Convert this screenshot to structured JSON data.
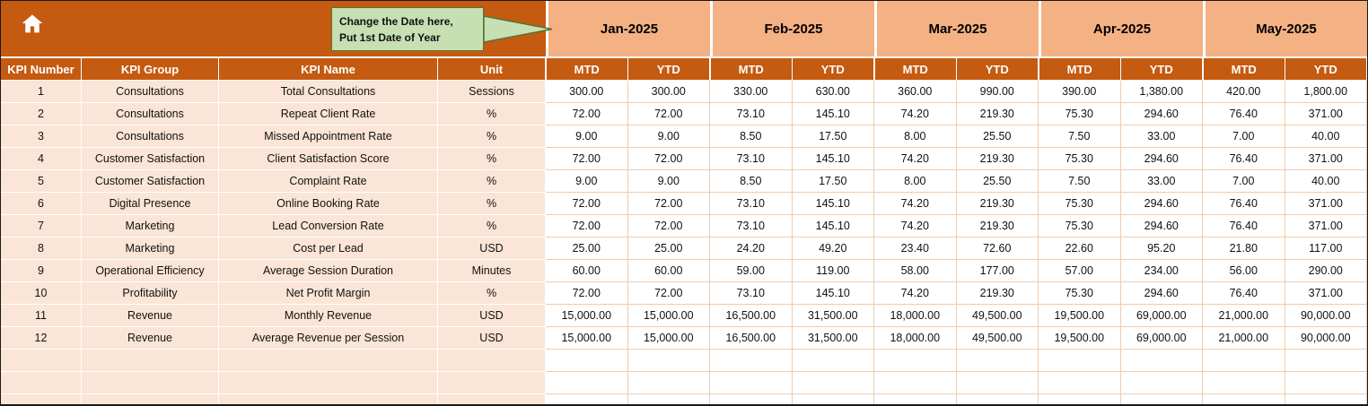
{
  "callout": {
    "line1": "Change the Date here,",
    "line2": "Put 1st Date of Year"
  },
  "months": [
    "Jan-2025",
    "Feb-2025",
    "Mar-2025",
    "Apr-2025",
    "May-2025"
  ],
  "subheaders": {
    "mtd": "MTD",
    "ytd": "YTD"
  },
  "columns": [
    "KPI Number",
    "KPI Group",
    "KPI Name",
    "Unit"
  ],
  "rows": [
    {
      "num": "1",
      "group": "Consultations",
      "name": "Total Consultations",
      "unit": "Sessions",
      "values": [
        "300.00",
        "300.00",
        "330.00",
        "630.00",
        "360.00",
        "990.00",
        "390.00",
        "1,380.00",
        "420.00",
        "1,800.00"
      ]
    },
    {
      "num": "2",
      "group": "Consultations",
      "name": "Repeat Client Rate",
      "unit": "%",
      "values": [
        "72.00",
        "72.00",
        "73.10",
        "145.10",
        "74.20",
        "219.30",
        "75.30",
        "294.60",
        "76.40",
        "371.00"
      ]
    },
    {
      "num": "3",
      "group": "Consultations",
      "name": "Missed Appointment Rate",
      "unit": "%",
      "values": [
        "9.00",
        "9.00",
        "8.50",
        "17.50",
        "8.00",
        "25.50",
        "7.50",
        "33.00",
        "7.00",
        "40.00"
      ]
    },
    {
      "num": "4",
      "group": "Customer Satisfaction",
      "name": "Client Satisfaction Score",
      "unit": "%",
      "values": [
        "72.00",
        "72.00",
        "73.10",
        "145.10",
        "74.20",
        "219.30",
        "75.30",
        "294.60",
        "76.40",
        "371.00"
      ]
    },
    {
      "num": "5",
      "group": "Customer Satisfaction",
      "name": "Complaint Rate",
      "unit": "%",
      "values": [
        "9.00",
        "9.00",
        "8.50",
        "17.50",
        "8.00",
        "25.50",
        "7.50",
        "33.00",
        "7.00",
        "40.00"
      ]
    },
    {
      "num": "6",
      "group": "Digital Presence",
      "name": "Online Booking Rate",
      "unit": "%",
      "values": [
        "72.00",
        "72.00",
        "73.10",
        "145.10",
        "74.20",
        "219.30",
        "75.30",
        "294.60",
        "76.40",
        "371.00"
      ]
    },
    {
      "num": "7",
      "group": "Marketing",
      "name": "Lead Conversion Rate",
      "unit": "%",
      "values": [
        "72.00",
        "72.00",
        "73.10",
        "145.10",
        "74.20",
        "219.30",
        "75.30",
        "294.60",
        "76.40",
        "371.00"
      ]
    },
    {
      "num": "8",
      "group": "Marketing",
      "name": "Cost per Lead",
      "unit": "USD",
      "values": [
        "25.00",
        "25.00",
        "24.20",
        "49.20",
        "23.40",
        "72.60",
        "22.60",
        "95.20",
        "21.80",
        "117.00"
      ]
    },
    {
      "num": "9",
      "group": "Operational Efficiency",
      "name": "Average Session Duration",
      "unit": "Minutes",
      "values": [
        "60.00",
        "60.00",
        "59.00",
        "119.00",
        "58.00",
        "177.00",
        "57.00",
        "234.00",
        "56.00",
        "290.00"
      ]
    },
    {
      "num": "10",
      "group": "Profitability",
      "name": "Net Profit Margin",
      "unit": "%",
      "values": [
        "72.00",
        "72.00",
        "73.10",
        "145.10",
        "74.20",
        "219.30",
        "75.30",
        "294.60",
        "76.40",
        "371.00"
      ]
    },
    {
      "num": "11",
      "group": "Revenue",
      "name": "Monthly Revenue",
      "unit": "USD",
      "values": [
        "15,000.00",
        "15,000.00",
        "16,500.00",
        "31,500.00",
        "18,000.00",
        "49,500.00",
        "19,500.00",
        "69,000.00",
        "21,000.00",
        "90,000.00"
      ]
    },
    {
      "num": "12",
      "group": "Revenue",
      "name": "Average Revenue per Session",
      "unit": "USD",
      "values": [
        "15,000.00",
        "15,000.00",
        "16,500.00",
        "31,500.00",
        "18,000.00",
        "49,500.00",
        "19,500.00",
        "69,000.00",
        "21,000.00",
        "90,000.00"
      ]
    }
  ],
  "empty_rows": 3,
  "colors": {
    "header_dark": "#C55A11",
    "month_band": "#F4B183",
    "row_label_bg": "#FBE5D6",
    "grid_line": "#F2CBAC",
    "callout_bg": "#C6E0B4",
    "callout_border": "#56752F"
  }
}
